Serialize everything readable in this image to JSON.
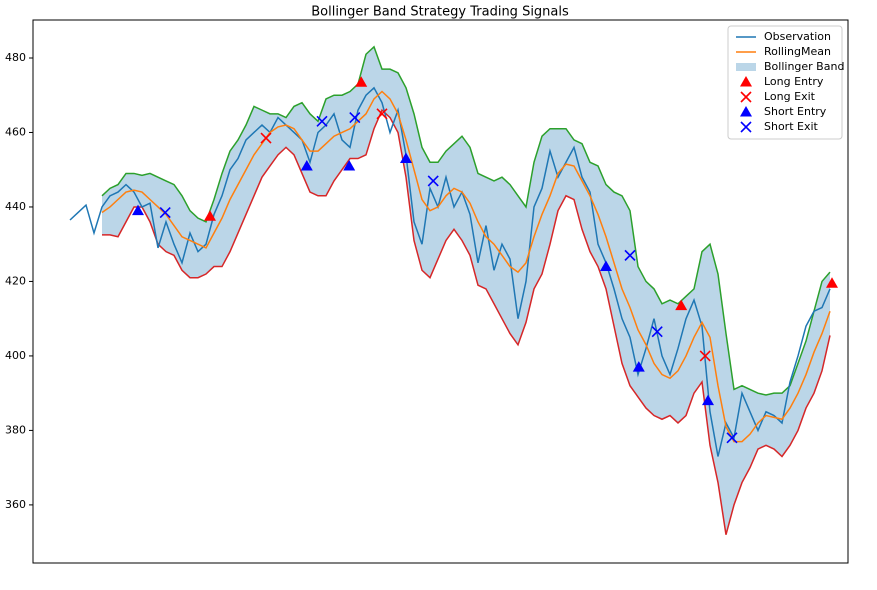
{
  "chart_data": {
    "type": "bollinger",
    "title": "Bollinger Band Strategy Trading Signals",
    "x": [
      0,
      1,
      2,
      3,
      4,
      5,
      6,
      7,
      8,
      9,
      10,
      11,
      12,
      13,
      14,
      15,
      16,
      17,
      18,
      19,
      20,
      21,
      22,
      23,
      24,
      25,
      26,
      27,
      28,
      29,
      30,
      31,
      32,
      33,
      34,
      35,
      36,
      37,
      38,
      39,
      40,
      41,
      42,
      43,
      44,
      45,
      46,
      47,
      48,
      49,
      50,
      51,
      52,
      53,
      54,
      55,
      56,
      57,
      58,
      59,
      60,
      61,
      62,
      63,
      64,
      65,
      66,
      67,
      68,
      69,
      70,
      71,
      72,
      73,
      74,
      75,
      76,
      77,
      78,
      79,
      80,
      81,
      82,
      83,
      84,
      85,
      86,
      87,
      88,
      89,
      90,
      91,
      92,
      93,
      94,
      95
    ],
    "xlim": [
      -4.625,
      97.25
    ],
    "ylim": [
      344.4,
      490.2
    ],
    "yticks": [
      360,
      380,
      400,
      420,
      440,
      460,
      480
    ],
    "grid": false,
    "legend": "upper right",
    "series": [
      {
        "name": "Observation",
        "type": "line",
        "color": "#1f77b4",
        "values": [
          436.5,
          438.5,
          440.5,
          433,
          440,
          443,
          444,
          446,
          444,
          440,
          441,
          429,
          436,
          430,
          425,
          433,
          428,
          430,
          438,
          443,
          450,
          453,
          458,
          460,
          462,
          460,
          464,
          462,
          460,
          458,
          452,
          460,
          462,
          465,
          458,
          456,
          466,
          470,
          472,
          468,
          460,
          466,
          454,
          436,
          430,
          445,
          440,
          448,
          440,
          444,
          438,
          425,
          435,
          423,
          430,
          426,
          410,
          420,
          440,
          445,
          455,
          448,
          452,
          456,
          448,
          444,
          430,
          425,
          418,
          410,
          405,
          395,
          402,
          410,
          400,
          395,
          402,
          410,
          415,
          408,
          385,
          373,
          382,
          378,
          390,
          385,
          380,
          385,
          384,
          382,
          393,
          400,
          408,
          412,
          413,
          418
        ]
      },
      {
        "name": "RollingMean",
        "type": "line",
        "color": "#ff7f0e",
        "values": [
          null,
          null,
          null,
          null,
          438.5,
          440,
          442,
          444,
          444.5,
          444,
          442,
          440,
          438,
          435,
          432,
          431,
          430,
          429,
          433,
          437,
          442,
          446,
          450,
          454,
          457,
          460,
          461.5,
          462,
          461,
          458,
          455,
          455,
          457,
          459,
          460,
          461,
          463,
          465,
          469,
          471,
          469,
          465,
          458,
          450,
          442,
          439,
          440,
          443,
          445,
          444,
          441,
          436,
          432,
          430,
          427,
          424,
          422.5,
          425,
          432,
          438,
          443,
          449,
          451.5,
          451,
          447,
          443,
          438,
          432,
          425,
          418,
          413,
          407,
          403,
          398,
          395,
          394,
          396,
          400,
          405,
          409,
          405,
          392,
          381,
          377,
          377,
          379,
          382,
          384,
          383.5,
          383,
          386,
          390,
          395,
          401,
          406,
          412
        ]
      },
      {
        "name": "Bollinger Band",
        "type": "band",
        "color": "#1f77b4",
        "upper_color": "#2ca02c",
        "lower_color": "#d62728",
        "upper": [
          null,
          null,
          null,
          null,
          443,
          445,
          446,
          449,
          449,
          448.5,
          449,
          448,
          447,
          446,
          443,
          439,
          437,
          436,
          442,
          449,
          455,
          458,
          462,
          467,
          466,
          465,
          465,
          464,
          467,
          468,
          465,
          463,
          469,
          470,
          470,
          471,
          473,
          481,
          483,
          477,
          477,
          476,
          472,
          465,
          456,
          452,
          452,
          455,
          457,
          459,
          456,
          449,
          448,
          447,
          448,
          446,
          443,
          440,
          452,
          459,
          461,
          461,
          461,
          458,
          457,
          452,
          451,
          446,
          444,
          443,
          439,
          424,
          420,
          418,
          414,
          415,
          414,
          416,
          418,
          428,
          430,
          422,
          406,
          391,
          392,
          391,
          390,
          389.5,
          390,
          390,
          392,
          398,
          404,
          412,
          420,
          422.5
        ],
        "lower": [
          null,
          null,
          null,
          null,
          432.5,
          432.5,
          432,
          436,
          440,
          440,
          436,
          430,
          428,
          427,
          423,
          421,
          421,
          422,
          424,
          424,
          428,
          433,
          438,
          443,
          448,
          451,
          454,
          456,
          454,
          449,
          444,
          443,
          443,
          447,
          450,
          453,
          453,
          454,
          461,
          466,
          464,
          460,
          448,
          431,
          423,
          421,
          426,
          431,
          434,
          431,
          427,
          419,
          418,
          414,
          410,
          406,
          403,
          409,
          418,
          422,
          430,
          439,
          443,
          442,
          434,
          428,
          424,
          418,
          408,
          398,
          392,
          389,
          386,
          384,
          383,
          384,
          382,
          384,
          390,
          393,
          376,
          366,
          352,
          360,
          366,
          370,
          375,
          376,
          375,
          373,
          376,
          380,
          386,
          390,
          396,
          405.5
        ]
      },
      {
        "name": "Long Entry",
        "type": "scatter",
        "marker": "triangle",
        "color": "#ff0000",
        "x": [
          17.5,
          36.4,
          76.4,
          95.25
        ],
        "values": [
          437.5,
          473.5,
          413.5,
          419.5
        ]
      },
      {
        "name": "Long Exit",
        "type": "scatter",
        "marker": "x",
        "color": "#ff0000",
        "x": [
          24.5,
          39,
          79.4
        ],
        "values": [
          458.5,
          465,
          400
        ]
      },
      {
        "name": "Short Entry",
        "type": "scatter",
        "marker": "triangle",
        "color": "#0000ff",
        "x": [
          8.5,
          29.6,
          34.9,
          42,
          67,
          71.1,
          79.75
        ],
        "values": [
          439,
          451,
          451,
          453,
          424,
          397,
          388
        ]
      },
      {
        "name": "Short Exit",
        "type": "scatter",
        "marker": "x",
        "color": "#0000ff",
        "x": [
          11.9,
          31.5,
          35.6,
          45.4,
          70,
          73.4,
          82.75
        ],
        "values": [
          438.5,
          463,
          464,
          447,
          427,
          406.5,
          378
        ]
      }
    ]
  }
}
